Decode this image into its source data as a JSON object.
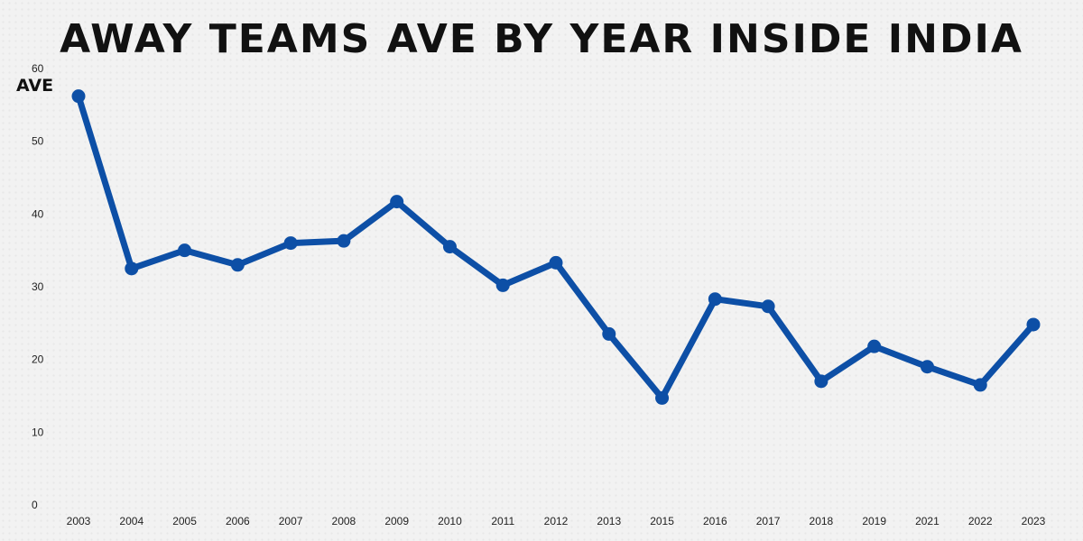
{
  "chart_data": {
    "type": "line",
    "title": "AWAY TEAMS AVE BY YEAR INSIDE INDIA",
    "xlabel": "",
    "ylabel": "AVE",
    "categories": [
      "2003",
      "2004",
      "2005",
      "2006",
      "2007",
      "2008",
      "2009",
      "2010",
      "2011",
      "2012",
      "2013",
      "2015",
      "2016",
      "2017",
      "2018",
      "2019",
      "2021",
      "2022",
      "2023"
    ],
    "series": [
      {
        "values": [
          56.2,
          32.5,
          35.0,
          33.0,
          36.0,
          36.3,
          41.7,
          35.5,
          30.2,
          33.3,
          23.5,
          14.7,
          28.3,
          27.3,
          17.0,
          21.8,
          19.0,
          16.5,
          24.8
        ]
      }
    ],
    "ylim": [
      0,
      60
    ],
    "yticks": [
      0,
      10,
      20,
      30,
      40,
      50,
      60
    ],
    "grid": false,
    "line_color": "#0d4fa6"
  }
}
